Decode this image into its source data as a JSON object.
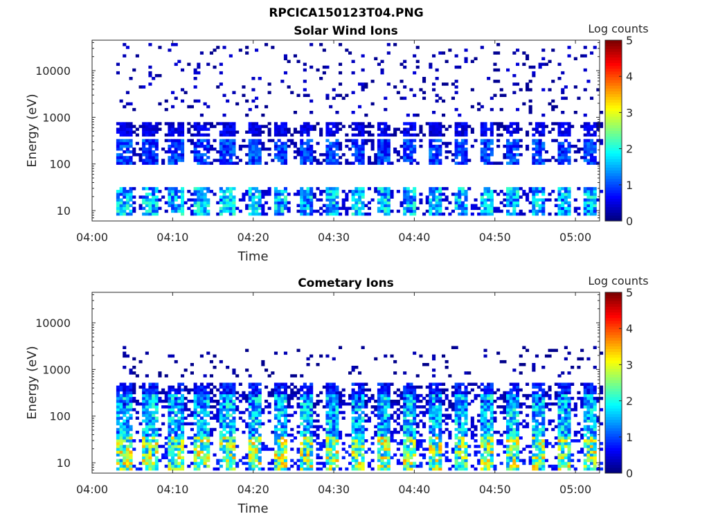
{
  "figure_title": "RPCICA150123T04.PNG",
  "colors": {
    "axis": "#262626",
    "background": "#ffffff",
    "colormap": "jet"
  },
  "chart_data": [
    {
      "type": "heatmap",
      "title": "Solar Wind Ions",
      "xlabel": "Time",
      "ylabel": "Energy (eV)",
      "x_ticks": [
        "04:00",
        "04:10",
        "04:20",
        "04:30",
        "04:40",
        "04:50",
        "05:00"
      ],
      "y_ticks": [
        "10",
        "100",
        "1000",
        "10000"
      ],
      "y_scale": "log",
      "ylim": [
        6,
        45000
      ],
      "x_range": [
        "04:00",
        "05:03"
      ],
      "colorbar": {
        "label": "Log counts",
        "ticks": [
          "0",
          "1",
          "2",
          "3",
          "4",
          "5"
        ],
        "range": [
          0,
          5
        ]
      },
      "scan_period_min": 3.2,
      "first_scan_min": 3.0,
      "bands": [
        {
          "emin": 8,
          "emax": 30,
          "level": 1.5
        },
        {
          "emin": 95,
          "emax": 320,
          "level": 0.9
        },
        {
          "emin": 400,
          "emax": 800,
          "level": 0.5
        },
        {
          "emin": 1000,
          "emax": 40000,
          "level": 0.3,
          "sparse": true
        }
      ]
    },
    {
      "type": "heatmap",
      "title": "Cometary Ions",
      "xlabel": "Time",
      "ylabel": "Energy (eV)",
      "x_ticks": [
        "04:00",
        "04:10",
        "04:20",
        "04:30",
        "04:40",
        "04:50",
        "05:00"
      ],
      "y_ticks": [
        "10",
        "100",
        "1000",
        "10000"
      ],
      "y_scale": "log",
      "ylim": [
        6,
        45000
      ],
      "x_range": [
        "04:00",
        "05:03"
      ],
      "colorbar": {
        "label": "Log counts",
        "ticks": [
          "0",
          "1",
          "2",
          "3",
          "4",
          "5"
        ],
        "range": [
          0,
          5
        ]
      },
      "scan_period_min": 3.2,
      "first_scan_min": 3.0,
      "bands": [
        {
          "emin": 7,
          "emax": 35,
          "level": 2.4
        },
        {
          "emin": 35,
          "emax": 300,
          "level": 1.5
        },
        {
          "emin": 150,
          "emax": 550,
          "level": 0.7
        },
        {
          "emin": 700,
          "emax": 3000,
          "level": 0.2,
          "sparse": true
        }
      ]
    }
  ]
}
